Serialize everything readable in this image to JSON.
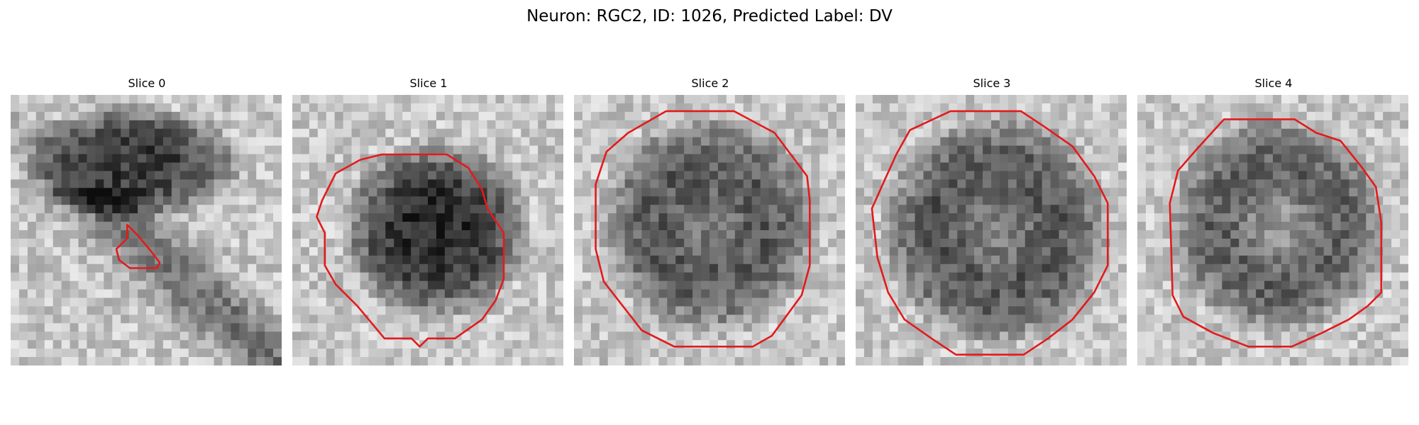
{
  "figure": {
    "suptitle": "Neuron: RGC2, ID: 1026, Predicted Label: DV",
    "slices": [
      {
        "title": "Slice 0"
      },
      {
        "title": "Slice 1"
      },
      {
        "title": "Slice 2"
      },
      {
        "title": "Slice 3"
      },
      {
        "title": "Slice 4"
      }
    ],
    "contour_color": "#e41a1c",
    "colormap": "grayscale"
  }
}
